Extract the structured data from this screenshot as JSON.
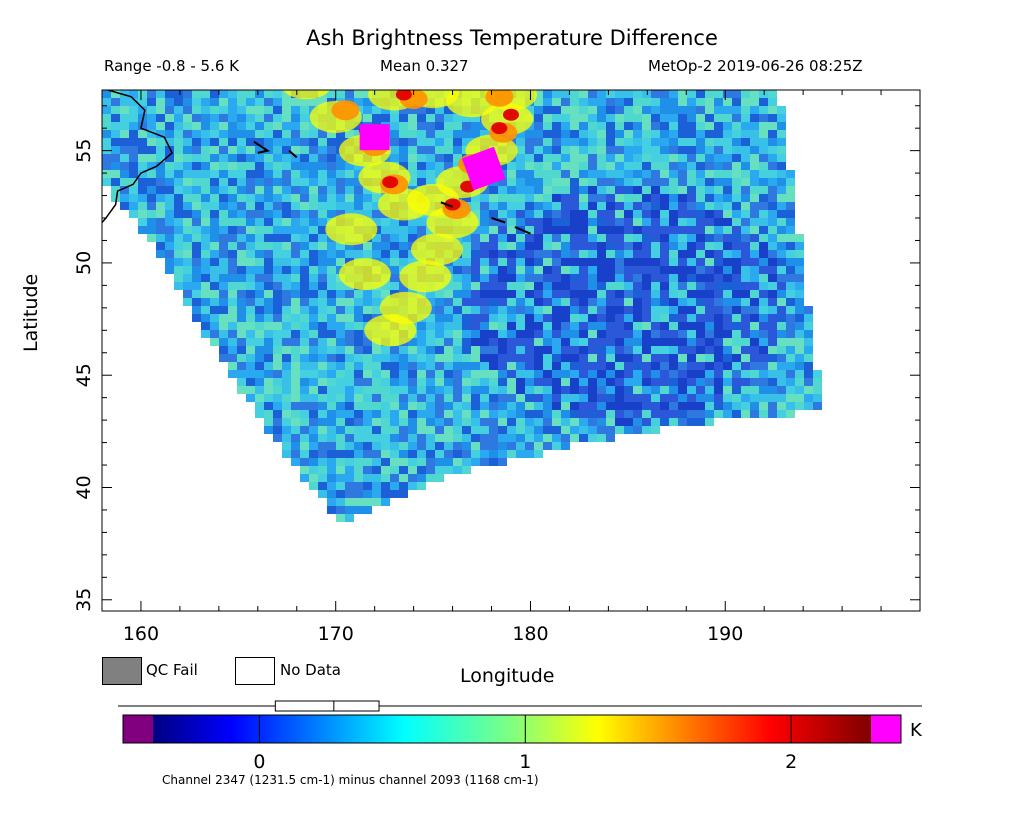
{
  "title": "Ash Brightness Temperature Difference",
  "header": {
    "range": "Range -0.8 - 5.6 K",
    "mean": "Mean 0.327",
    "satellite_time": "MetOp-2 2019-06-26 08:25Z"
  },
  "axes": {
    "xlabel": "Longitude",
    "ylabel": "Latitude",
    "xticks": [
      "160",
      "170",
      "180",
      "190"
    ],
    "yticks": [
      "35",
      "40",
      "45",
      "50",
      "55"
    ],
    "xlim": [
      158,
      200
    ],
    "ylim": [
      34.5,
      57.7
    ]
  },
  "legend": {
    "qc_fail": {
      "label": "QC Fail",
      "color": "#808080"
    },
    "no_data": {
      "label": "No Data",
      "color": "#ffffff"
    }
  },
  "colorbar": {
    "unit": "K",
    "ticks": [
      "0",
      "1",
      "2"
    ],
    "tick_values": [
      0,
      1,
      2
    ],
    "range": [
      -0.4,
      2.3
    ],
    "under_color": "#800080",
    "over_color": "#ff00ff",
    "stats_box": {
      "low": 0.06,
      "mean": 0.28,
      "high": 0.45
    }
  },
  "footnote": "Channel 2347 (1231.5 cm-1) minus channel 2093 (1168 cm-1)",
  "map_data": {
    "swath_corners_lonlat": [
      [
        157.6,
        54.0
      ],
      [
        170.2,
        38.4
      ],
      [
        195.0,
        43.4
      ],
      [
        192.8,
        57.7
      ],
      [
        158.0,
        57.7
      ]
    ],
    "ash_plume_high_lonlat": [
      [
        172.0,
        55.6
      ],
      [
        177.6,
        54.2
      ]
    ],
    "colors": {
      "background_field": "#38c0e8",
      "low_field": "#2060e0",
      "plume_yellow": "#ffff00",
      "plume_orange": "#ff9000",
      "plume_red": "#e00000",
      "plume_peak": "#ff00ff",
      "coastline": "#000000"
    }
  }
}
